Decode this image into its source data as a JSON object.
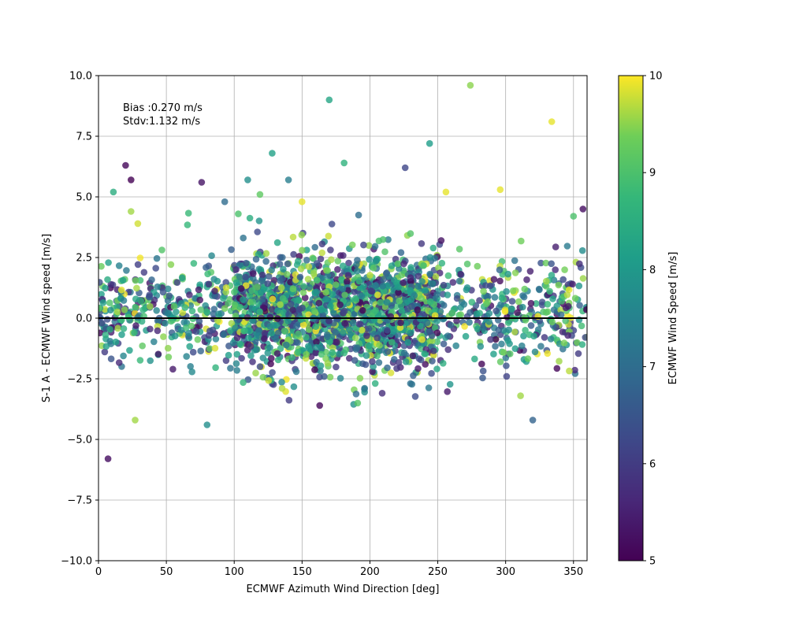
{
  "chart_data": {
    "type": "scatter",
    "title": "",
    "xlabel": "ECMWF Azimuth Wind Direction [deg]",
    "ylabel": "S-1 A - ECMWF Wind speed [m/s]",
    "xlim": [
      0,
      360
    ],
    "ylim": [
      -10,
      10
    ],
    "x_ticks": [
      0,
      50,
      100,
      150,
      200,
      250,
      300,
      350
    ],
    "y_ticks": [
      -10.0,
      -7.5,
      -5.0,
      -2.5,
      0.0,
      2.5,
      5.0,
      7.5,
      10.0
    ],
    "x_tick_labels": [
      "0",
      "50",
      "100",
      "150",
      "200",
      "250",
      "300",
      "350"
    ],
    "y_tick_labels": [
      "−10.0",
      "−7.5",
      "−5.0",
      "−2.5",
      "0.0",
      "2.5",
      "5.0",
      "7.5",
      "10.0"
    ],
    "grid": true,
    "zero_line": 0,
    "annotation": {
      "bias": "Bias :0.270 m/s",
      "stdv": "Stdv:1.132 m/s"
    },
    "colorbar": {
      "label": "ECMWF Wind Speed [m/s]",
      "range": [
        5,
        10
      ],
      "ticks": [
        5,
        6,
        7,
        8,
        9,
        10
      ],
      "tick_labels": [
        "5",
        "6",
        "7",
        "8",
        "9",
        "10"
      ],
      "colormap": "viridis"
    },
    "outliers": [
      {
        "x": 7,
        "y": -5.8,
        "c": 5.2
      },
      {
        "x": 20,
        "y": 6.3,
        "c": 5.1
      },
      {
        "x": 24,
        "y": 5.7,
        "c": 5.0
      },
      {
        "x": 11,
        "y": 5.2,
        "c": 8.5
      },
      {
        "x": 27,
        "y": -4.2,
        "c": 9.6
      },
      {
        "x": 24,
        "y": 4.4,
        "c": 9.6
      },
      {
        "x": 29,
        "y": 3.9,
        "c": 9.8
      },
      {
        "x": 76,
        "y": 5.6,
        "c": 5.3
      },
      {
        "x": 80,
        "y": -4.4,
        "c": 7.8
      },
      {
        "x": 93,
        "y": 4.8,
        "c": 7.0
      },
      {
        "x": 103,
        "y": 4.3,
        "c": 9.0
      },
      {
        "x": 110,
        "y": 5.7,
        "c": 7.8
      },
      {
        "x": 119,
        "y": 5.1,
        "c": 9.2
      },
      {
        "x": 128,
        "y": 6.8,
        "c": 8.2
      },
      {
        "x": 140,
        "y": 5.7,
        "c": 7.4
      },
      {
        "x": 150,
        "y": 4.8,
        "c": 9.9
      },
      {
        "x": 170,
        "y": 9.0,
        "c": 8.3
      },
      {
        "x": 181,
        "y": 6.4,
        "c": 8.6
      },
      {
        "x": 163,
        "y": -3.6,
        "c": 5.1
      },
      {
        "x": 191,
        "y": -3.5,
        "c": 9.1
      },
      {
        "x": 226,
        "y": 6.2,
        "c": 6.2
      },
      {
        "x": 244,
        "y": 7.2,
        "c": 8.1
      },
      {
        "x": 256,
        "y": 5.2,
        "c": 9.9
      },
      {
        "x": 274,
        "y": 9.6,
        "c": 9.5
      },
      {
        "x": 296,
        "y": 5.3,
        "c": 9.9
      },
      {
        "x": 334,
        "y": 8.1,
        "c": 9.9
      },
      {
        "x": 320,
        "y": -4.2,
        "c": 6.8
      },
      {
        "x": 357,
        "y": 4.5,
        "c": 5.2
      },
      {
        "x": 350,
        "y": 4.2,
        "c": 9.0
      },
      {
        "x": 311,
        "y": -3.2,
        "c": 9.6
      }
    ],
    "bulk": {
      "count": 2600,
      "x_range": [
        0,
        360
      ],
      "y_center": 0.27,
      "y_stdv": 1.132,
      "c_range": [
        5,
        10
      ]
    }
  }
}
